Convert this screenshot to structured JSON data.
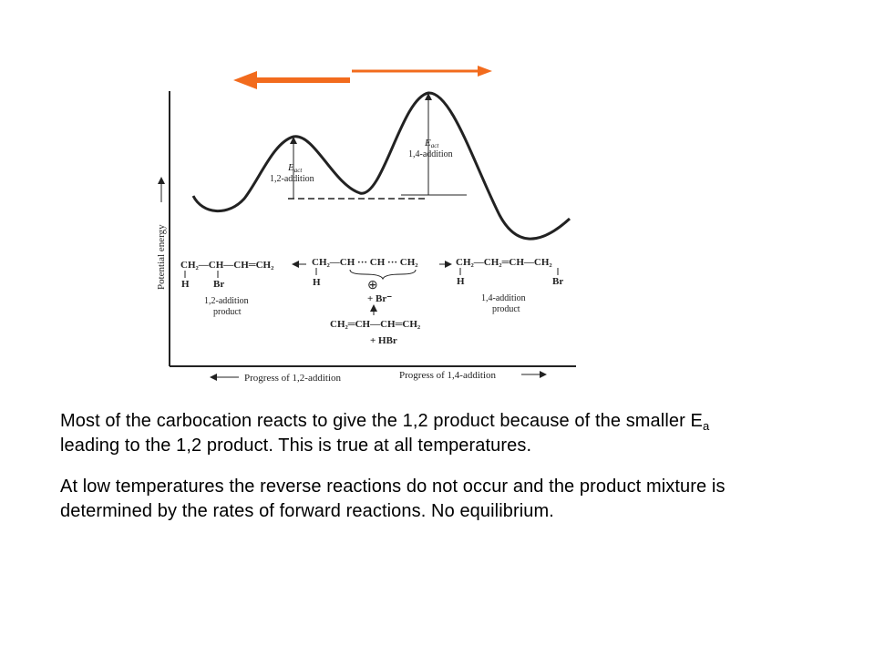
{
  "colors": {
    "arrow": "#f26b1d",
    "ink": "#222222",
    "text": "#000000",
    "background": "#ffffff"
  },
  "diagram": {
    "y_axis_label": "Potential energy",
    "x_axis_left_label": "Progress of 1,2-addition",
    "x_axis_right_label": "Progress of 1,4-addition",
    "eact_symbol": "E",
    "eact_subscript": "act",
    "barrier_12_label": "1,2-addition",
    "barrier_14_label": "1,4-addition",
    "product_12_formula": "CH₂—CH—CH═CH₂",
    "product_12_sub_h": "H",
    "product_12_sub_br": "Br",
    "product_12_label_line1": "1,2-addition",
    "product_12_label_line2": "product",
    "carbocation_formula": "CH₂—CH ··· CH ··· CH₂",
    "carbocation_sub_h": "H",
    "plus_charge": "⊕",
    "bromide_ion": "+ Br⁻",
    "reactant_formula": "CH₂═CH—CH═CH₂",
    "reactant_hbr": "+ HBr",
    "product_14_formula": "CH₂—CH₂═CH—CH₂",
    "product_14_sub_h": "H",
    "product_14_sub_br": "Br",
    "product_14_label_line1": "1,4-addition",
    "product_14_label_line2": "product"
  },
  "text": {
    "para1_part1": "Most of the carbocation reacts to give the 1,2 product because of the smaller E",
    "para1_sub": "a",
    "para1_part2": " leading to the 1,2 product.  This is true at all temperatures.",
    "para2": "At low temperatures the reverse reactions do not occur and the product mixture is determined by the rates of forward reactions.  No equilibrium."
  }
}
